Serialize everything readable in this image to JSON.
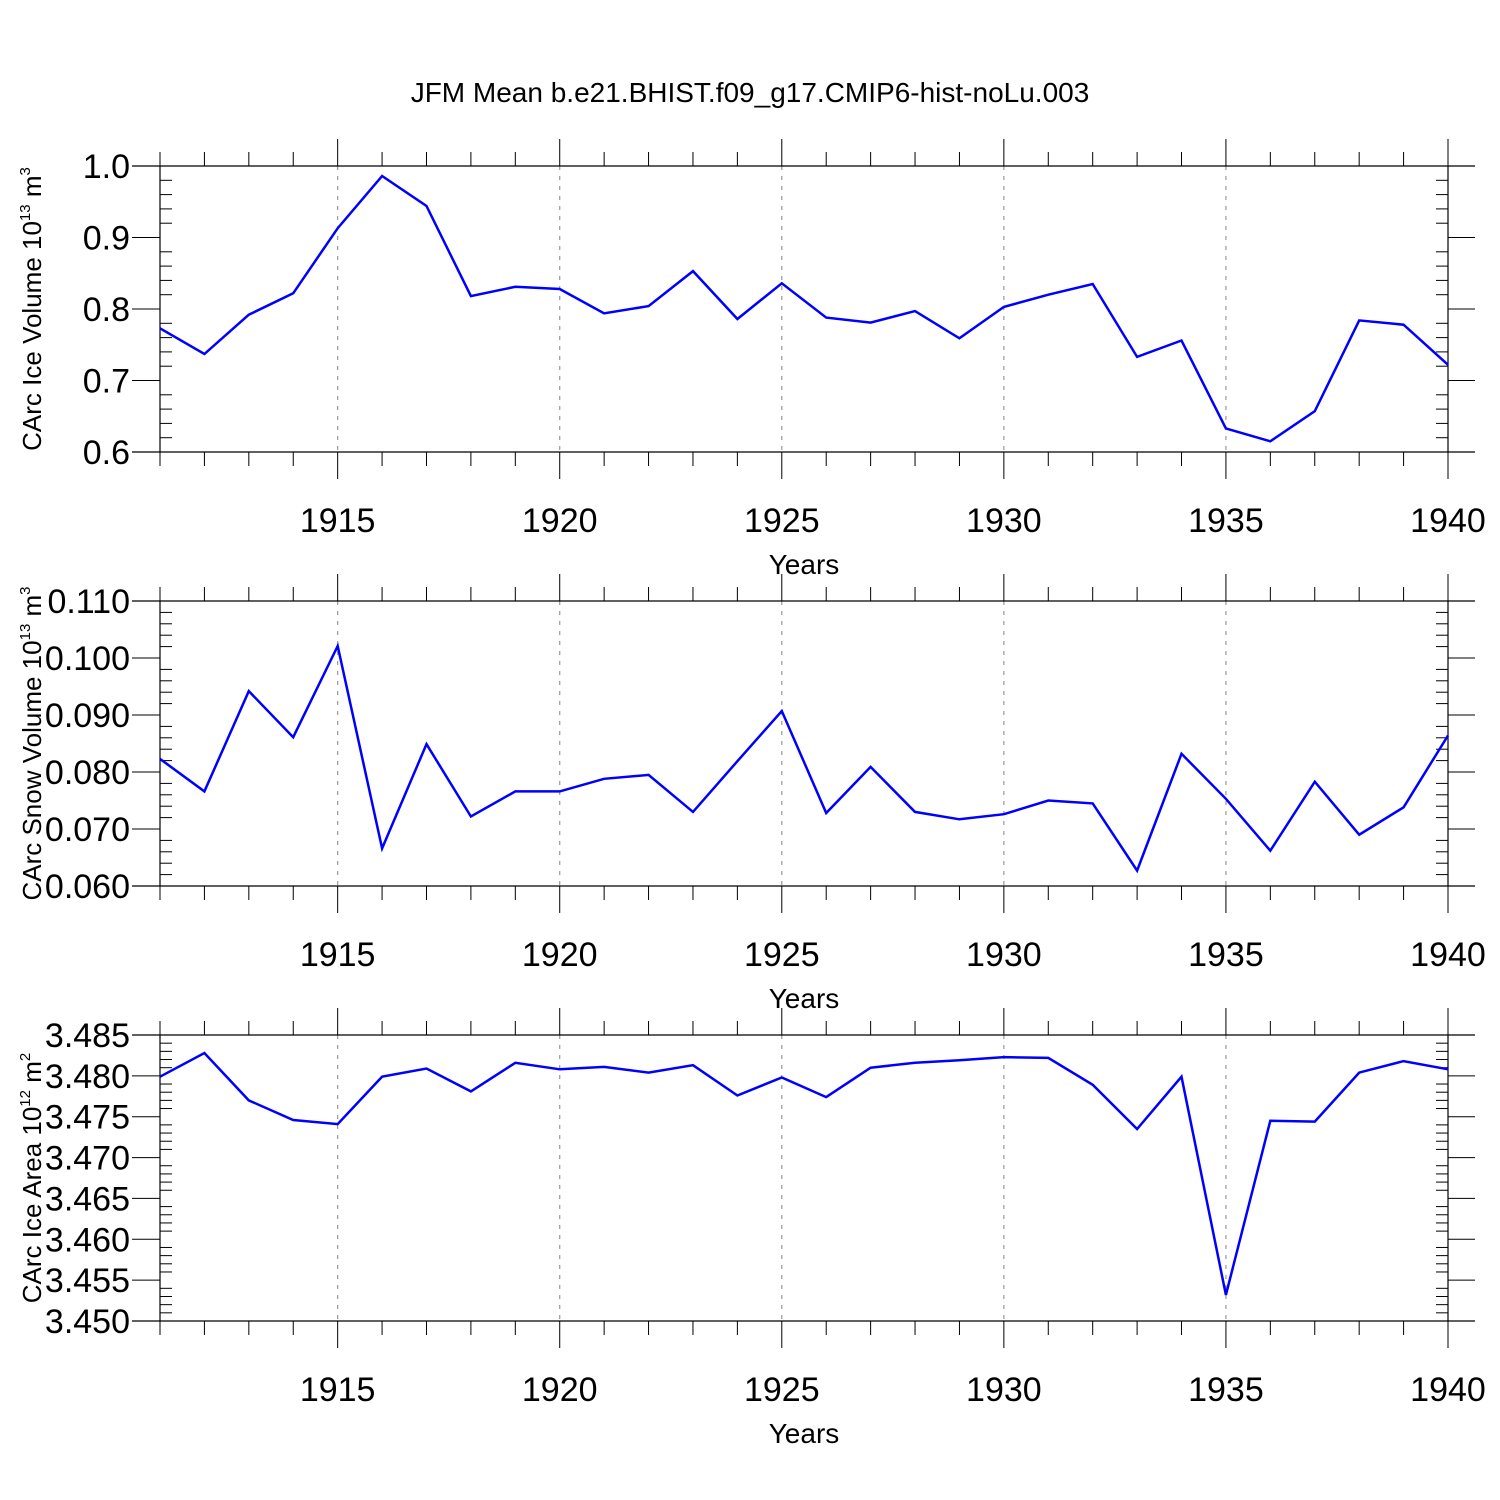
{
  "title": "JFM Mean b.e21.BHIST.f09_g17.CMIP6-hist-noLu.003",
  "colors": {
    "line": "#0000ff",
    "grid": "#999999",
    "axis": "#000000"
  },
  "chart_data": [
    {
      "type": "line",
      "ylabel": "CArc Ice Volume 10",
      "ylabel_exp": "13",
      "ylabel_unit": " m",
      "ylabel_unit_exp": "3",
      "xlabel": "Years",
      "xlim": [
        1911,
        1940
      ],
      "ylim": [
        0.6,
        1.0
      ],
      "grid_x": true,
      "xticks": [
        1915,
        1920,
        1925,
        1930,
        1935,
        1940
      ],
      "xtick_labels": [
        "1915",
        "1920",
        "1925",
        "1930",
        "1935",
        "1940"
      ],
      "yticks": [
        0.6,
        0.7,
        0.8,
        0.9,
        1.0
      ],
      "ytick_labels": [
        "0.6",
        "0.7",
        "0.8",
        "0.9",
        "1.0"
      ],
      "yminor_step": 0.02,
      "x": [
        1911,
        1912,
        1913,
        1914,
        1915,
        1916,
        1917,
        1918,
        1919,
        1920,
        1921,
        1922,
        1923,
        1924,
        1925,
        1926,
        1927,
        1928,
        1929,
        1930,
        1931,
        1932,
        1933,
        1934,
        1935,
        1936,
        1937,
        1938,
        1939,
        1940
      ],
      "values": [
        0.773,
        0.737,
        0.792,
        0.822,
        0.913,
        0.986,
        0.944,
        0.818,
        0.831,
        0.828,
        0.794,
        0.804,
        0.853,
        0.786,
        0.836,
        0.788,
        0.781,
        0.797,
        0.759,
        0.803,
        0.82,
        0.835,
        0.733,
        0.756,
        0.633,
        0.615,
        0.657,
        0.784,
        0.778,
        0.722
      ]
    },
    {
      "type": "line",
      "ylabel": "CArc Snow Volume 10",
      "ylabel_exp": "13",
      "ylabel_unit": " m",
      "ylabel_unit_exp": "3",
      "xlabel": "Years",
      "xlim": [
        1911,
        1940
      ],
      "ylim": [
        0.06,
        0.11
      ],
      "grid_x": true,
      "xticks": [
        1915,
        1920,
        1925,
        1930,
        1935,
        1940
      ],
      "xtick_labels": [
        "1915",
        "1920",
        "1925",
        "1930",
        "1935",
        "1940"
      ],
      "yticks": [
        0.06,
        0.07,
        0.08,
        0.09,
        0.1,
        0.11
      ],
      "ytick_labels": [
        "0.060",
        "0.070",
        "0.080",
        "0.090",
        "0.100",
        "0.110"
      ],
      "yminor_step": 0.002,
      "x": [
        1911,
        1912,
        1913,
        1914,
        1915,
        1916,
        1917,
        1918,
        1919,
        1920,
        1921,
        1922,
        1923,
        1924,
        1925,
        1926,
        1927,
        1928,
        1929,
        1930,
        1931,
        1932,
        1933,
        1934,
        1935,
        1936,
        1937,
        1938,
        1939,
        1940
      ],
      "values": [
        0.0823,
        0.0766,
        0.0942,
        0.0861,
        0.1021,
        0.0666,
        0.0849,
        0.0722,
        0.0766,
        0.0766,
        0.0788,
        0.0795,
        0.073,
        0.0819,
        0.0907,
        0.0728,
        0.0809,
        0.073,
        0.0717,
        0.0726,
        0.075,
        0.0745,
        0.0627,
        0.0832,
        0.0753,
        0.0662,
        0.0783,
        0.069,
        0.0738,
        0.0864
      ]
    },
    {
      "type": "line",
      "ylabel": "CArc Ice Area 10",
      "ylabel_exp": "12",
      "ylabel_unit": " m",
      "ylabel_unit_exp": "2",
      "xlabel": "Years",
      "xlim": [
        1911,
        1940
      ],
      "ylim": [
        3.45,
        3.485
      ],
      "grid_x": true,
      "xticks": [
        1915,
        1920,
        1925,
        1930,
        1935,
        1940
      ],
      "xtick_labels": [
        "1915",
        "1920",
        "1925",
        "1930",
        "1935",
        "1940"
      ],
      "yticks": [
        3.45,
        3.455,
        3.46,
        3.465,
        3.47,
        3.475,
        3.48,
        3.485
      ],
      "ytick_labels": [
        "3.450",
        "3.455",
        "3.460",
        "3.465",
        "3.470",
        "3.475",
        "3.480",
        "3.485"
      ],
      "yminor_step": 0.001,
      "x": [
        1911,
        1912,
        1913,
        1914,
        1915,
        1916,
        1917,
        1918,
        1919,
        1920,
        1921,
        1922,
        1923,
        1924,
        1925,
        1926,
        1927,
        1928,
        1929,
        1930,
        1931,
        1932,
        1933,
        1934,
        1935,
        1936,
        1937,
        1938,
        1939,
        1940
      ],
      "values": [
        3.4799,
        3.4828,
        3.477,
        3.4746,
        3.4741,
        3.4799,
        3.4809,
        3.4781,
        3.4816,
        3.4808,
        3.4811,
        3.4804,
        3.4813,
        3.4776,
        3.4798,
        3.4774,
        3.481,
        3.4816,
        3.4819,
        3.4823,
        3.4822,
        3.4789,
        3.4735,
        3.4799,
        3.4532,
        3.4745,
        3.4744,
        3.4804,
        3.4818,
        3.4808
      ]
    }
  ]
}
